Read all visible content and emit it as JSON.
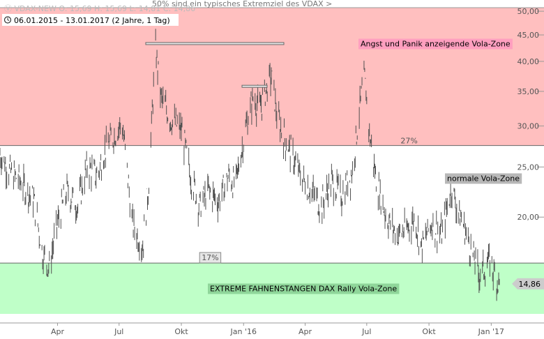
{
  "header": {
    "symbol": "VDAX-NEW",
    "ohlc": "O: 15,69  H: 15,69  L: 14,81  C: 14,86",
    "subtitle": "06.01.2015 - 13.01.2017  (2 Jahre, 1 Tag)",
    "top_note": "50% sind ein typisches Extremziel des VDAX >"
  },
  "colors": {
    "panic_zone": "#ffbfbf",
    "rally_zone": "#bfffc8",
    "price": "#505050",
    "last_price_bg": "#cccccc"
  },
  "zones": [
    {
      "name": "panic",
      "label": "Angst und Panik anzeigende Vola-Zone",
      "from": 27.5,
      "to": 50.8,
      "color": "#ffbfbf",
      "label_bg": "#ff9fbf"
    },
    {
      "name": "normal",
      "label": "normale Vola-Zone",
      "from": 16.3,
      "to": 27.5,
      "color": "#ffffff",
      "label_bg": "#b8b8b8"
    },
    {
      "name": "extreme",
      "label": "EXTREME FAHNENSTANGEN DAX Rally Vola-Zone",
      "from": 13.0,
      "to": 16.3,
      "color": "#bfffc8",
      "label_bg": "#8fd69a"
    }
  ],
  "pct_labels": [
    {
      "text": "27%",
      "date": "2016-08-20",
      "y": 27.6
    },
    {
      "text": "17%",
      "date": "2015-10-28",
      "y": 16.9
    }
  ],
  "chart_data": {
    "type": "line",
    "scale": "log",
    "ylim": [
      13.0,
      50.8
    ],
    "xlim": [
      "2015-01-06",
      "2017-03-20"
    ],
    "y_ticks": [
      {
        "v": 20,
        "label": "20,00"
      },
      {
        "v": 25,
        "label": "25,00"
      },
      {
        "v": 30,
        "label": "30,00"
      },
      {
        "v": 35,
        "label": "35,00"
      },
      {
        "v": 40,
        "label": "40,00"
      },
      {
        "v": 45,
        "label": "45,00"
      },
      {
        "v": 50,
        "label": "50,00"
      }
    ],
    "x_ticks": [
      {
        "date": "2015-04-01",
        "label": "Apr"
      },
      {
        "date": "2015-07-01",
        "label": "Jul"
      },
      {
        "date": "2015-10-01",
        "label": "Okt"
      },
      {
        "date": "2016-01-01",
        "label": "Jan '16"
      },
      {
        "date": "2016-04-01",
        "label": "Apr"
      },
      {
        "date": "2016-07-01",
        "label": "Jul"
      },
      {
        "date": "2016-10-01",
        "label": "Okt"
      },
      {
        "date": "2017-01-01",
        "label": "Jan '17"
      }
    ],
    "series": [
      {
        "x": [
          "2015-01-06",
          "2015-01-20",
          "2015-02-05",
          "2015-02-25",
          "2015-03-10",
          "2015-03-20",
          "2015-04-01",
          "2015-04-15",
          "2015-05-01",
          "2015-05-15",
          "2015-05-30",
          "2015-06-10",
          "2015-06-25",
          "2015-07-05",
          "2015-07-20",
          "2015-08-05",
          "2015-08-15",
          "2015-08-24",
          "2015-09-01",
          "2015-09-15",
          "2015-10-01",
          "2015-10-15",
          "2015-10-28",
          "2015-11-10",
          "2015-11-25",
          "2015-12-10",
          "2015-12-20",
          "2016-01-05",
          "2016-01-15",
          "2016-01-25",
          "2016-02-11",
          "2016-02-20",
          "2016-03-01",
          "2016-03-15",
          "2016-03-25",
          "2016-04-10",
          "2016-04-25",
          "2016-05-10",
          "2016-05-25",
          "2016-06-10",
          "2016-06-24",
          "2016-06-28",
          "2016-07-05",
          "2016-07-15",
          "2016-07-30",
          "2016-08-15",
          "2016-08-30",
          "2016-09-10",
          "2016-09-20",
          "2016-10-05",
          "2016-10-20",
          "2016-11-04",
          "2016-11-10",
          "2016-11-20",
          "2016-12-01",
          "2016-12-15",
          "2016-12-30",
          "2017-01-06",
          "2017-01-13"
        ],
        "y": [
          26.5,
          24.5,
          23.5,
          21.5,
          17.0,
          16.0,
          19.5,
          22.5,
          21.0,
          25.0,
          24.0,
          27.0,
          29.0,
          30.5,
          19.5,
          17.5,
          24.0,
          42.0,
          34.0,
          31.0,
          29.5,
          24.0,
          21.0,
          22.5,
          21.5,
          24.0,
          23.0,
          30.0,
          34.0,
          32.5,
          37.5,
          31.0,
          28.5,
          26.0,
          24.0,
          22.5,
          21.0,
          23.5,
          22.0,
          24.5,
          35.0,
          37.0,
          29.0,
          23.5,
          20.0,
          18.5,
          19.0,
          20.0,
          17.5,
          19.5,
          18.5,
          23.0,
          21.0,
          19.5,
          17.5,
          15.5,
          16.5,
          15.5,
          14.86
        ]
      }
    ],
    "annotations": [
      {
        "text": "14,86",
        "type": "last_price",
        "y": 14.86
      }
    ]
  }
}
